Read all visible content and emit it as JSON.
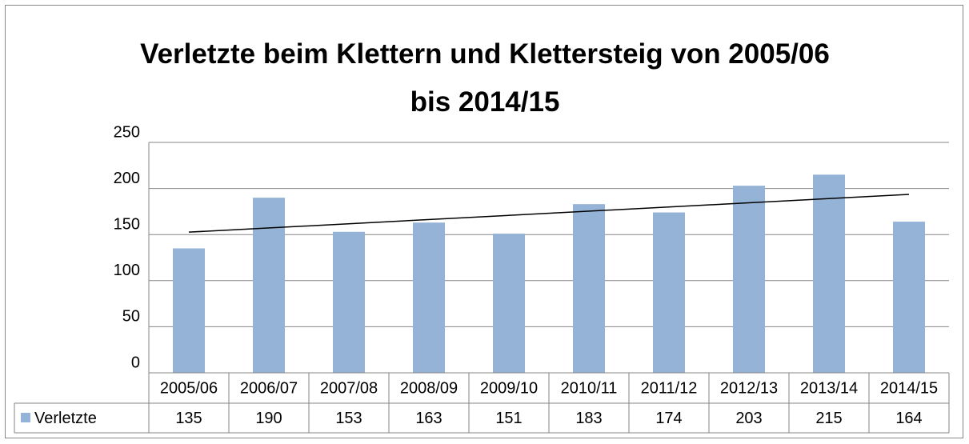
{
  "chart_data": {
    "type": "bar",
    "title": "Verletzte beim Klettern und Klettersteig von 2005/06 bis 2014/15",
    "categories": [
      "2005/06",
      "2006/07",
      "2007/08",
      "2008/09",
      "2009/10",
      "2010/11",
      "2011/12",
      "2012/13",
      "2013/14",
      "2014/15"
    ],
    "series": [
      {
        "name": "Verletzte",
        "color": "#95b3d7",
        "values": [
          135,
          190,
          153,
          163,
          151,
          183,
          174,
          203,
          215,
          164
        ]
      }
    ],
    "ylim": [
      0,
      250
    ],
    "yticks": [
      0,
      50,
      100,
      150,
      200,
      250
    ],
    "grid": true,
    "trendline": "linear",
    "data_table": true
  }
}
